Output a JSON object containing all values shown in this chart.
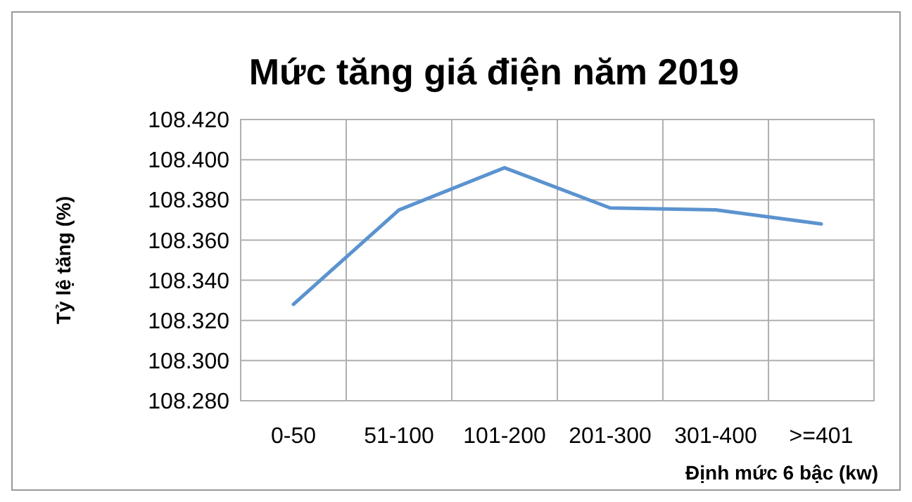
{
  "chart_data": {
    "type": "line",
    "title": "Mức tăng giá điện năm 2019",
    "xlabel": "Định mức 6 bậc (kw)",
    "ylabel": "Tỷ lệ tăng (%)",
    "categories": [
      "0-50",
      "51-100",
      "101-200",
      "201-300",
      "301-400",
      ">=401"
    ],
    "series": [
      {
        "color": "#5b93cf",
        "values": [
          108.328,
          108.375,
          108.396,
          108.376,
          108.375,
          108.368
        ]
      }
    ],
    "ylim": [
      108.28,
      108.42
    ],
    "yticks": [
      {
        "value": 108.28,
        "label": "108.280"
      },
      {
        "value": 108.3,
        "label": "108.300"
      },
      {
        "value": 108.32,
        "label": "108.320"
      },
      {
        "value": 108.34,
        "label": "108.340"
      },
      {
        "value": 108.36,
        "label": "108.360"
      },
      {
        "value": 108.38,
        "label": "108.380"
      },
      {
        "value": 108.4,
        "label": "108.400"
      },
      {
        "value": 108.42,
        "label": "108.420"
      }
    ],
    "grid": true,
    "marker": "none",
    "line_style": "solid"
  }
}
